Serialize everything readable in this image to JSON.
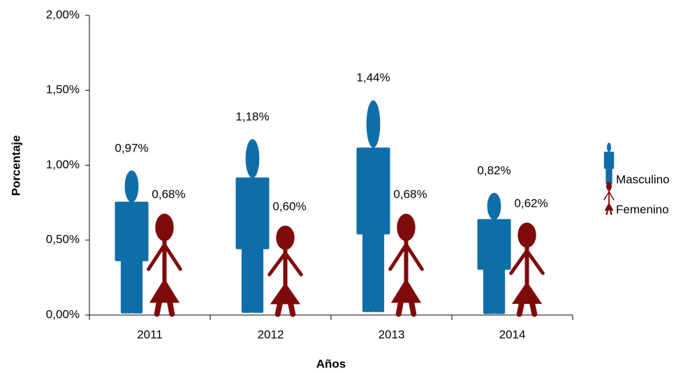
{
  "chart_data": {
    "type": "pictograph",
    "y_label": "Porcentaje",
    "x_label": "Años",
    "categories": [
      "2011",
      "2012",
      "2013",
      "2014"
    ],
    "series": [
      {
        "name": "Masculino",
        "color": "#0f6eaa",
        "values": [
          0.97,
          1.18,
          1.44,
          0.82
        ],
        "value_labels": [
          "0,97%",
          "1,18%",
          "1,44%",
          "0,82%"
        ]
      },
      {
        "name": "Femenino",
        "color": "#7f0a0a",
        "values": [
          0.68,
          0.6,
          0.68,
          0.62
        ],
        "value_labels": [
          "0,68%",
          "0,60%",
          "0,68%",
          "0,62%"
        ]
      }
    ],
    "ylim": [
      0,
      2
    ],
    "yticks": [
      {
        "value": 0,
        "label": "0,00%"
      },
      {
        "value": 0.5,
        "label": "0,50%"
      },
      {
        "value": 1,
        "label": "1,00%"
      },
      {
        "value": 1.5,
        "label": "1,50%"
      },
      {
        "value": 2,
        "label": "2,00%"
      }
    ],
    "legend": "right"
  }
}
